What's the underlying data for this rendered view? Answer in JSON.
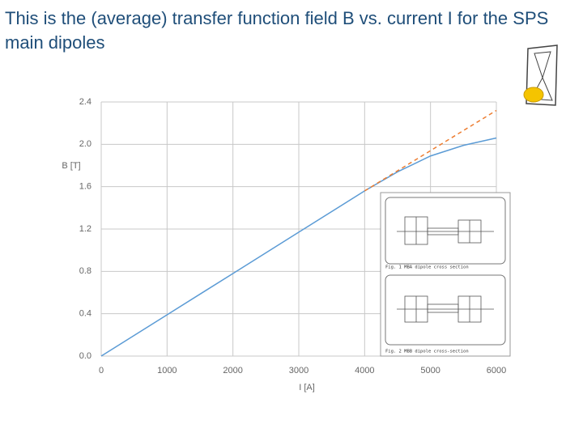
{
  "title": "This is the (average) transfer function field B vs. current I for the SPS main dipoles",
  "chart_data": {
    "type": "line",
    "xlabel": "I [A]",
    "ylabel": "B [T]",
    "series": [
      {
        "color": "#5b9bd5",
        "dash": false,
        "x": [
          0,
          1000,
          2000,
          3000,
          4000,
          4500,
          5000,
          5500,
          6000
        ],
        "values": [
          0,
          0.39,
          0.78,
          1.17,
          1.56,
          1.74,
          1.89,
          1.99,
          2.06
        ]
      },
      {
        "color": "#ed7d31",
        "dash": true,
        "x": [
          4000,
          4500,
          5000,
          5500,
          6000
        ],
        "values": [
          1.56,
          1.75,
          1.94,
          2.13,
          2.32
        ]
      }
    ],
    "xlim": [
      0,
      6000
    ],
    "xticks": [
      0,
      1000,
      2000,
      3000,
      4000,
      5000,
      6000
    ],
    "ylim": [
      0,
      2.4
    ],
    "yticks": [
      {
        "value": 0,
        "label": "0.0"
      },
      0.4,
      0.8,
      1.2,
      1.6,
      {
        "value": 2,
        "label": "2.0"
      },
      2.4
    ],
    "grid": true
  },
  "inset": {
    "captions": [
      "Fig. 1  MBA dipole cross section",
      "Fig. 2  MBB dipole cross-section"
    ]
  }
}
